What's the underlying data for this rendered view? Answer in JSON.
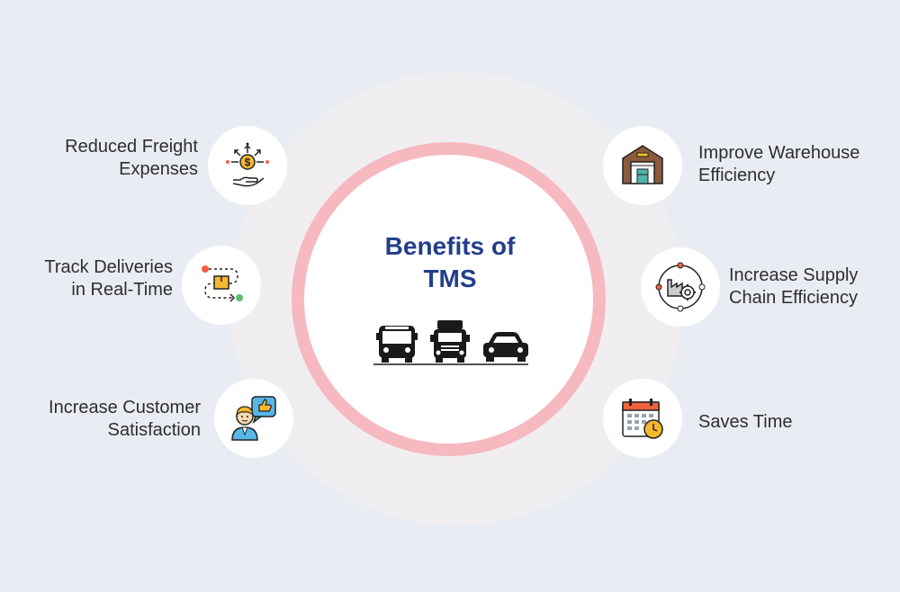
{
  "center": {
    "title_line1": "Benefits of",
    "title_line2": "TMS",
    "vehicles_icon": "bus-truck-car-icon"
  },
  "benefits": {
    "reduced_freight": {
      "line1": "Reduced Freight",
      "line2": "Expenses",
      "icon": "dollar-hand-icon"
    },
    "track_deliveries": {
      "line1": "Track Deliveries",
      "line2": "in Real-Time",
      "icon": "route-package-icon"
    },
    "customer_satisfaction": {
      "line1": "Increase Customer",
      "line2": "Satisfaction",
      "icon": "customer-thumbs-up-icon"
    },
    "warehouse_efficiency": {
      "line1": "Improve Warehouse",
      "line2": "Efficiency",
      "icon": "warehouse-icon"
    },
    "supply_chain": {
      "line1": "Increase Supply",
      "line2": "Chain Efficiency",
      "icon": "factory-gear-icon"
    },
    "saves_time": {
      "line1": "Saves Time",
      "icon": "calendar-clock-icon"
    }
  },
  "colors": {
    "background": "#e9edf3",
    "outer_circle": "#f1eef2",
    "ring": "#f6b9bf",
    "title": "#233e8b"
  }
}
